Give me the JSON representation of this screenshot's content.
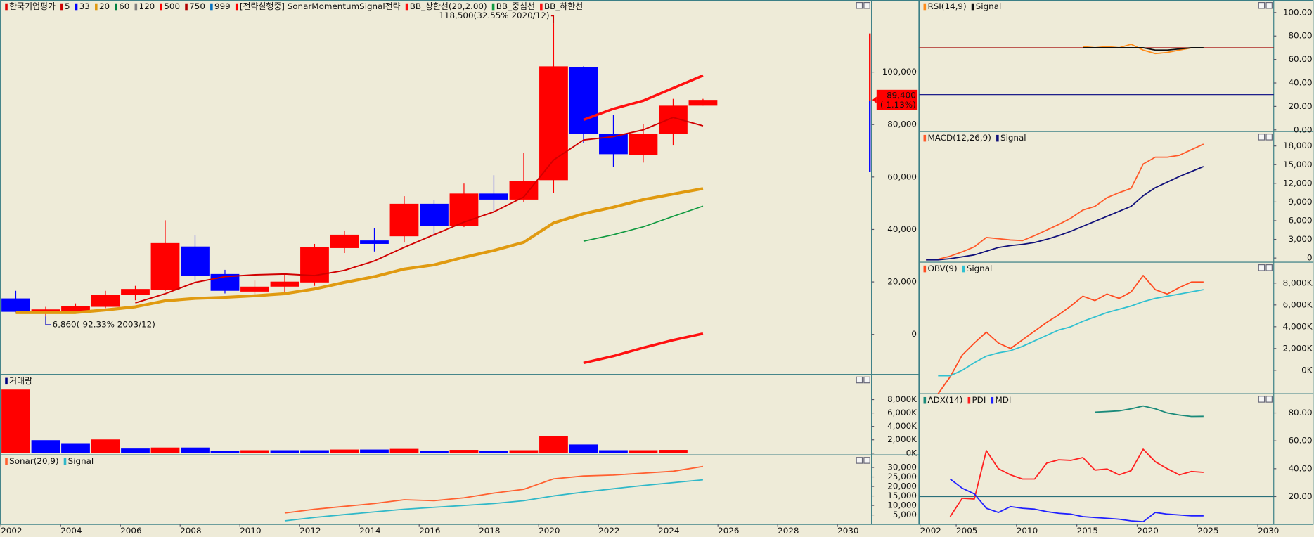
{
  "chart_data": [
    {
      "type": "candlestick",
      "name": "한국기업평가",
      "color": "#e00000",
      "up_color": "#ff0000",
      "down_color": "#0000ff",
      "x": [
        2002,
        2003,
        2004,
        2005,
        2006,
        2007,
        2008,
        2009,
        2010,
        2011,
        2012,
        2013,
        2014,
        2015,
        2016,
        2017,
        2018,
        2019,
        2020,
        2021,
        2022,
        2023,
        2024,
        2025
      ],
      "open": [
        13700,
        8600,
        8600,
        10500,
        15000,
        17000,
        33500,
        23000,
        16300,
        18200,
        19800,
        32900,
        35800,
        37400,
        49800,
        41200,
        53700,
        51400,
        58800,
        101900,
        76400,
        68400,
        76400,
        87200
      ],
      "high": [
        16600,
        10500,
        11800,
        16600,
        18500,
        43500,
        37700,
        24600,
        20500,
        23000,
        34500,
        39600,
        40600,
        52700,
        51100,
        57500,
        60700,
        69300,
        118500,
        102200,
        83700,
        80200,
        89800,
        89800
      ],
      "low": [
        8400,
        6860,
        8300,
        10000,
        13000,
        16500,
        20500,
        15600,
        14700,
        16000,
        18500,
        31000,
        31600,
        35000,
        37400,
        40900,
        47000,
        50500,
        54000,
        73000,
        63900,
        65500,
        72000,
        87200
      ],
      "close": [
        8600,
        9500,
        10900,
        15000,
        17300,
        34800,
        22400,
        16600,
        18200,
        20100,
        33200,
        38000,
        34500,
        49800,
        41200,
        53700,
        51400,
        58500,
        102200,
        76400,
        68700,
        76400,
        87200,
        89400
      ],
      "series": [
        {
          "name": "5",
          "color": "#d00000",
          "values": [
            null,
            null,
            null,
            null,
            12000,
            15500,
            19800,
            22000,
            22700,
            23000,
            22400,
            24400,
            28000,
            33200,
            38000,
            42800,
            46700,
            52400,
            66500,
            74100,
            75400,
            78000,
            82700,
            79500
          ]
        },
        {
          "name": "33",
          "color": "#0000ff"
        },
        {
          "name": "20",
          "color": "#e09a10",
          "values": [
            8300,
            8300,
            8300,
            9300,
            10500,
            12800,
            13700,
            14100,
            14700,
            15500,
            17300,
            19800,
            22000,
            24900,
            26500,
            29400,
            32000,
            35100,
            42500,
            46000,
            48500,
            51400,
            53500,
            55600
          ]
        },
        {
          "name": "60",
          "color": "#008040"
        },
        {
          "name": "120",
          "color": "#808080"
        },
        {
          "name": "500",
          "color": "#ff0000"
        },
        {
          "name": "750",
          "color": "#b00000"
        },
        {
          "name": "999",
          "color": "#0070c0"
        },
        {
          "name": "[전략실행중] SonarMomentumSignal전략",
          "color": "#ff0000"
        },
        {
          "name": "BB_상한선(20,2.00)",
          "color": "#ff1010",
          "values": [
            null,
            null,
            null,
            null,
            null,
            null,
            null,
            null,
            null,
            null,
            null,
            null,
            null,
            null,
            null,
            null,
            null,
            null,
            null,
            81800,
            86000,
            89100,
            93900,
            98700
          ]
        },
        {
          "name": "BB_중심선",
          "color": "#109a40",
          "values": [
            null,
            null,
            null,
            null,
            null,
            null,
            null,
            null,
            null,
            null,
            null,
            null,
            null,
            null,
            null,
            null,
            null,
            null,
            null,
            35500,
            38000,
            41000,
            45000,
            48900
          ]
        },
        {
          "name": "BB_하한선",
          "color": "#ff1010",
          "values": [
            null,
            null,
            null,
            null,
            null,
            null,
            null,
            null,
            null,
            null,
            null,
            null,
            null,
            null,
            null,
            null,
            null,
            null,
            null,
            -10900,
            -8300,
            -5100,
            -2200,
            300
          ]
        }
      ],
      "annotations": [
        "118,500(32.55% 2020/12)",
        "6,860(-92.33% 2003/12)"
      ],
      "last_price": {
        "value": 89400,
        "label": "89,400"
      },
      "change_label": "( 1.13%)",
      "xlim": [
        2001.5,
        2030.64
      ],
      "ylim": [
        -15300,
        127500
      ],
      "yticks": [
        {
          "value": 100000,
          "label": "100,000"
        },
        {
          "value": 80000,
          "label": "80,000"
        },
        {
          "value": 60000,
          "label": "60,000"
        },
        {
          "value": 40000,
          "label": "40,000"
        },
        {
          "value": 20000,
          "label": "20,000"
        },
        0
      ]
    },
    {
      "type": "bar",
      "name": "거래량",
      "color": "#000080",
      "x": [
        2002,
        2003,
        2004,
        2005,
        2006,
        2007,
        2008,
        2009,
        2010,
        2011,
        2012,
        2013,
        2014,
        2015,
        2016,
        2017,
        2018,
        2019,
        2020,
        2021,
        2022,
        2023,
        2024,
        2025
      ],
      "values": [
        9500,
        1950,
        1500,
        2050,
        700,
        850,
        850,
        400,
        450,
        450,
        450,
        550,
        550,
        650,
        400,
        500,
        300,
        450,
        2600,
        1300,
        450,
        450,
        500,
        50
      ],
      "colors": [
        "#ff0000",
        "#0000ff",
        "#0000ff",
        "#ff0000",
        "#0000ff",
        "#ff0000",
        "#0000ff",
        "#0000ff",
        "#ff0000",
        "#0000ff",
        "#0000ff",
        "#ff0000",
        "#0000ff",
        "#ff0000",
        "#0000ff",
        "#ff0000",
        "#0000ff",
        "#ff0000",
        "#ff0000",
        "#0000ff",
        "#0000ff",
        "#ff0000",
        "#ff0000",
        "#0000ff"
      ],
      "xlim": [
        2001.5,
        2030.64
      ],
      "ylim": [
        0,
        11750
      ],
      "yticks": [
        {
          "value": 8000,
          "label": "8,000K"
        },
        {
          "value": 6000,
          "label": "6,000K"
        },
        {
          "value": 4000,
          "label": "4,000K"
        },
        {
          "value": 2000,
          "label": "2,000K"
        },
        {
          "value": 0,
          "label": "0K"
        }
      ]
    },
    {
      "type": "line",
      "x": [
        2002,
        2003,
        2004,
        2005,
        2006,
        2007,
        2008,
        2009,
        2010,
        2011,
        2012,
        2013,
        2014,
        2015,
        2016,
        2017,
        2018,
        2019,
        2020,
        2021,
        2022,
        2023,
        2024,
        2025
      ],
      "series": [
        {
          "name": "Sonar(20,9)",
          "color": "#ff6030",
          "values": [
            null,
            null,
            null,
            null,
            null,
            null,
            null,
            null,
            null,
            6000,
            8000,
            9500,
            11000,
            13000,
            12500,
            14000,
            16500,
            18500,
            24000,
            25500,
            26000,
            27000,
            28000,
            30500
          ]
        },
        {
          "name": "Signal",
          "color": "#30b8c8",
          "values": [
            null,
            null,
            null,
            null,
            null,
            null,
            null,
            null,
            null,
            1900,
            3700,
            5200,
            6600,
            8000,
            9000,
            10000,
            11000,
            12500,
            15000,
            17000,
            18800,
            20500,
            22000,
            23500
          ]
        }
      ],
      "xlim": [
        2001.5,
        2030.64
      ],
      "ylim": [
        0,
        36600
      ],
      "yticks": [
        {
          "value": 30000,
          "label": "30,000"
        },
        {
          "value": 25000,
          "label": "25,000"
        },
        {
          "value": 20000,
          "label": "20,000"
        },
        {
          "value": 15000,
          "label": "15,000"
        },
        {
          "value": 10000,
          "label": "10,000"
        },
        {
          "value": 5000,
          "label": "5,000"
        }
      ],
      "xticks": [
        2002,
        2004,
        2006,
        2008,
        2010,
        2012,
        2014,
        2016,
        2018,
        2020,
        2022,
        2024,
        2026,
        2028,
        2030
      ]
    },
    {
      "type": "line",
      "x": [
        2002,
        2003,
        2004,
        2005,
        2006,
        2007,
        2008,
        2009,
        2010,
        2011,
        2012,
        2013,
        2014,
        2015,
        2016,
        2017,
        2018,
        2019,
        2020,
        2021,
        2022,
        2023,
        2024,
        2025
      ],
      "series": [
        {
          "name": "RSI(14,9)",
          "color": "#ff8c1a",
          "values": [
            null,
            null,
            null,
            null,
            null,
            null,
            null,
            null,
            null,
            null,
            null,
            null,
            null,
            71,
            70,
            71,
            70,
            73,
            68,
            65,
            66,
            68,
            70,
            70
          ]
        },
        {
          "name": "Signal",
          "color": "#101010",
          "values": [
            null,
            null,
            null,
            null,
            null,
            null,
            null,
            null,
            null,
            null,
            null,
            null,
            null,
            70,
            70,
            70,
            70,
            70,
            70,
            68,
            68,
            69,
            70,
            70
          ]
        }
      ],
      "reference_lines": [
        {
          "value": 70,
          "color": "#a00000"
        },
        {
          "value": 30,
          "color": "#000080"
        }
      ],
      "xlim": [
        2001.44,
        2030.82
      ],
      "ylim": [
        -1.4,
        110.7
      ],
      "yticks": [
        {
          "value": 100,
          "label": "100.00"
        },
        {
          "value": 80,
          "label": "80.00"
        },
        {
          "value": 60,
          "label": "60.00"
        },
        {
          "value": 40,
          "label": "40.00"
        },
        {
          "value": 20,
          "label": "20.00"
        },
        {
          "value": 0,
          "label": "0.00"
        }
      ]
    },
    {
      "type": "line",
      "x": [
        2002,
        2003,
        2004,
        2005,
        2006,
        2007,
        2008,
        2009,
        2010,
        2011,
        2012,
        2013,
        2014,
        2015,
        2016,
        2017,
        2018,
        2019,
        2020,
        2021,
        2022,
        2023,
        2024,
        2025
      ],
      "series": [
        {
          "name": "MACD(12,26,9)",
          "color": "#ff5a2a",
          "values": [
            -300,
            -200,
            300,
            1000,
            1800,
            3300,
            3100,
            2900,
            2800,
            3600,
            4500,
            5400,
            6400,
            7700,
            8300,
            9700,
            10500,
            11200,
            15100,
            16200,
            16200,
            16500,
            17400,
            18300
          ]
        },
        {
          "name": "Signal",
          "color": "#10107a",
          "values": [
            -300,
            -300,
            -100,
            200,
            500,
            1100,
            1700,
            2000,
            2200,
            2500,
            3000,
            3600,
            4300,
            5100,
            5900,
            6700,
            7500,
            8300,
            10000,
            11300,
            12200,
            13100,
            13900,
            14700
          ]
        }
      ],
      "xlim": [
        2001.44,
        2030.82
      ],
      "ylim": [
        -670,
        20320
      ],
      "yticks": [
        {
          "value": 18000,
          "label": "18,000"
        },
        {
          "value": 15000,
          "label": "15,000"
        },
        {
          "value": 12000,
          "label": "12,000"
        },
        {
          "value": 9000,
          "label": "9,000"
        },
        {
          "value": 6000,
          "label": "6,000"
        },
        {
          "value": 3000,
          "label": "3,000"
        },
        0
      ]
    },
    {
      "type": "line",
      "x": [
        2002,
        2003,
        2004,
        2005,
        2006,
        2007,
        2008,
        2009,
        2010,
        2011,
        2012,
        2013,
        2014,
        2015,
        2016,
        2017,
        2018,
        2019,
        2020,
        2021,
        2022,
        2023,
        2024,
        2025
      ],
      "series": [
        {
          "name": "OBV(9)",
          "color": "#ff4a20",
          "values": [
            null,
            -2150,
            -600,
            1400,
            2500,
            3500,
            2500,
            2000,
            2800,
            3600,
            4400,
            5100,
            5900,
            6800,
            6400,
            7000,
            6600,
            7200,
            8700,
            7400,
            7000,
            7600,
            8100,
            8100
          ]
        },
        {
          "name": "Signal",
          "color": "#30c0d0",
          "values": [
            null,
            -500,
            -500,
            0,
            700,
            1300,
            1600,
            1800,
            2200,
            2700,
            3200,
            3700,
            4000,
            4500,
            4900,
            5300,
            5600,
            5900,
            6300,
            6600,
            6800,
            7000,
            7200,
            7400
          ]
        }
      ],
      "xlim": [
        2001.44,
        2030.82
      ],
      "ylim": [
        -2150,
        9920
      ],
      "yticks": [
        {
          "value": 8000,
          "label": "8,000K"
        },
        {
          "value": 6000,
          "label": "6,000K"
        },
        {
          "value": 4000,
          "label": "4,000K"
        },
        {
          "value": 2000,
          "label": "2,000K"
        },
        {
          "value": 0,
          "label": "0K"
        }
      ]
    },
    {
      "type": "line",
      "x": [
        2002,
        2003,
        2004,
        2005,
        2006,
        2007,
        2008,
        2009,
        2010,
        2011,
        2012,
        2013,
        2014,
        2015,
        2016,
        2017,
        2018,
        2019,
        2020,
        2021,
        2022,
        2023,
        2024,
        2025
      ],
      "series": [
        {
          "name": "ADX(14)",
          "color": "#1a8a7a",
          "values": [
            null,
            null,
            null,
            null,
            null,
            null,
            null,
            null,
            null,
            null,
            null,
            null,
            null,
            null,
            80.6,
            81,
            81.5,
            83,
            85,
            83,
            80,
            78.5,
            77.5,
            77.6
          ]
        },
        {
          "name": "PDI",
          "color": "#ff2020",
          "values": [
            null,
            null,
            5.6,
            18.8,
            18.2,
            53,
            40,
            35.6,
            32.6,
            32.6,
            44,
            46.4,
            46,
            48,
            39,
            39.8,
            35.6,
            38.6,
            54,
            45,
            40,
            35.6,
            38,
            37.4
          ]
        },
        {
          "name": "MDI",
          "color": "#2020ff",
          "values": [
            null,
            null,
            32.6,
            26,
            22,
            11.6,
            8.6,
            12.8,
            11.6,
            11,
            9.2,
            8,
            7.4,
            5.6,
            5,
            4.4,
            3.8,
            2.6,
            2,
            8.6,
            7.4,
            6.8,
            6.2,
            6.2
          ]
        }
      ],
      "reference_lines": [
        {
          "value": 20,
          "color": "#2a6f7a"
        }
      ],
      "xlim": [
        2001.44,
        2030.82
      ],
      "ylim": [
        0,
        93.8
      ],
      "yticks": [
        {
          "value": 80,
          "label": "80.00"
        },
        {
          "value": 60,
          "label": "60.00"
        },
        {
          "value": 40,
          "label": "40.00"
        },
        {
          "value": 20,
          "label": "20.00"
        }
      ],
      "xticks": [
        2002,
        2005,
        2010,
        2015,
        2020,
        2025,
        2030
      ]
    }
  ]
}
